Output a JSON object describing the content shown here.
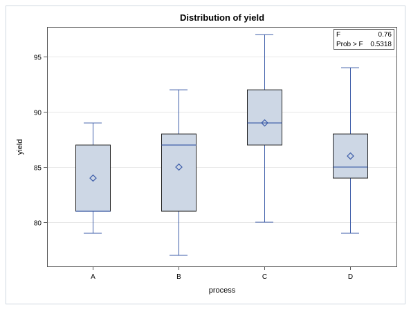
{
  "chart_data": {
    "type": "box",
    "title": "Distribution of yield",
    "xlabel": "process",
    "ylabel": "yield",
    "ylim": [
      76,
      97.7
    ],
    "yticks": [
      80,
      85,
      90,
      95
    ],
    "grid": true,
    "categories": [
      "A",
      "B",
      "C",
      "D"
    ],
    "boxes": [
      {
        "category": "A",
        "min": 79,
        "q1": 81,
        "median": 81,
        "q3": 87,
        "max": 89,
        "mean": 84
      },
      {
        "category": "B",
        "min": 77,
        "q1": 81,
        "median": 87,
        "q3": 88,
        "max": 92,
        "mean": 85
      },
      {
        "category": "C",
        "min": 80,
        "q1": 87,
        "median": 89,
        "q3": 92,
        "max": 97,
        "mean": 89
      },
      {
        "category": "D",
        "min": 79,
        "q1": 84,
        "median": 85,
        "q3": 88,
        "max": 94,
        "mean": 86
      }
    ],
    "stats_inset": {
      "placement": "top-right",
      "rows": [
        {
          "label": "F",
          "value": "0.76"
        },
        {
          "label": "Prob > F",
          "value": "0.5318"
        }
      ]
    },
    "colors": {
      "box_fill": "#cdd7e5",
      "box_border": "#222222",
      "whisker": "#3b5ba8",
      "median": "#3b5ba8",
      "mean_marker": "#3b5ba8",
      "grid": "#e6e6e6",
      "frame": "#cfd6df"
    }
  }
}
